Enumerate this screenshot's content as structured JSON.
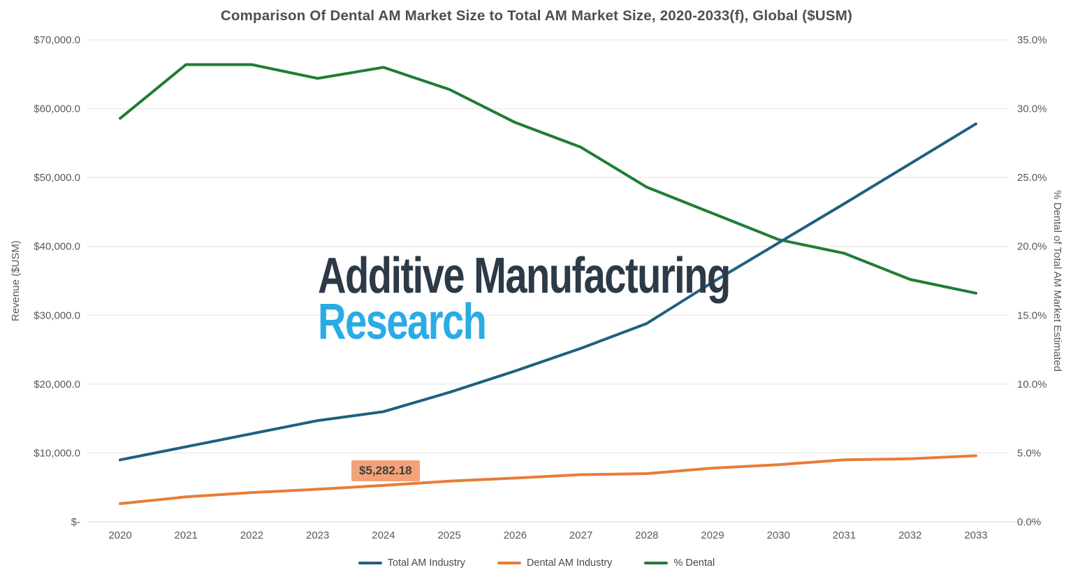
{
  "page": {
    "title": "Comparison Of Dental AM Market Size to Total AM Market Size, 2020-2033(f), Global ($USM)"
  },
  "colors": {
    "gridline": "#e4e4e4",
    "axis_baseline": "#d5d5d5",
    "tick_text": "#595959",
    "title_text": "#4e4e4e",
    "total_am_line": "#1f6080",
    "dental_am_line": "#e87c38",
    "pct_dental_line": "#1f7d35",
    "watermark_dark": "#2c3a48",
    "watermark_blue": "#29ace4",
    "annotation_bg": "#f2a279",
    "annotation_text": "#3f3f3f"
  },
  "watermark": {
    "line1": "Additive Manufacturing",
    "line2": "Research"
  },
  "annotation": {
    "text": "$5,282.18",
    "year": 2024,
    "series": "Dental AM Industry"
  },
  "legend": {
    "items": [
      {
        "label": "Total AM Industry",
        "color": "#1f6080"
      },
      {
        "label": "Dental AM Industry",
        "color": "#e87c38"
      },
      {
        "label": "% Dental",
        "color": "#1f7d35"
      }
    ]
  },
  "chart_data": {
    "type": "line",
    "title": "Comparison Of Dental AM Market Size to Total AM Market Size, 2020-2033(f), Global ($USM)",
    "x": [
      2020,
      2021,
      2022,
      2023,
      2024,
      2025,
      2026,
      2027,
      2028,
      2029,
      2030,
      2031,
      2032,
      2033
    ],
    "series": [
      {
        "name": "Total AM Industry",
        "axis": "left",
        "color": "#1f6080",
        "values": [
          9000,
          10900,
          12800,
          14700,
          16000,
          18800,
          21900,
          25200,
          28800,
          34800,
          40500,
          46200,
          52000,
          57800
        ]
      },
      {
        "name": "Dental AM Industry",
        "axis": "left",
        "color": "#e87c38",
        "values": [
          2640,
          3620,
          4250,
          4730,
          5282.18,
          5900,
          6350,
          6850,
          7000,
          7800,
          8300,
          9000,
          9150,
          9600
        ]
      },
      {
        "name": "% Dental",
        "axis": "right",
        "color": "#1f7d35",
        "values": [
          29.3,
          33.2,
          33.2,
          32.2,
          33.0,
          31.4,
          29.0,
          27.2,
          24.3,
          22.4,
          20.5,
          19.5,
          17.6,
          16.6
        ]
      }
    ],
    "left_axis": {
      "label": "Revenue ($USM)",
      "min": 0,
      "max": 70000,
      "ticks_bottom_to_top": [
        "$-",
        "$10,000.0",
        "$20,000.0",
        "$30,000.0",
        "$40,000.0",
        "$50,000.0",
        "$60,000.0",
        "$70,000.0"
      ]
    },
    "right_axis": {
      "label": "% Dental of Total AM Market Estimated",
      "min": 0,
      "max": 35,
      "ticks_bottom_to_top": [
        "0.0%",
        "5.0%",
        "10.0%",
        "15.0%",
        "20.0%",
        "25.0%",
        "30.0%",
        "35.0%"
      ]
    },
    "grid": "horizontal",
    "legend_position": "bottom",
    "data_label": {
      "text": "$5,282.18",
      "series": "Dental AM Industry",
      "x": 2024
    }
  }
}
